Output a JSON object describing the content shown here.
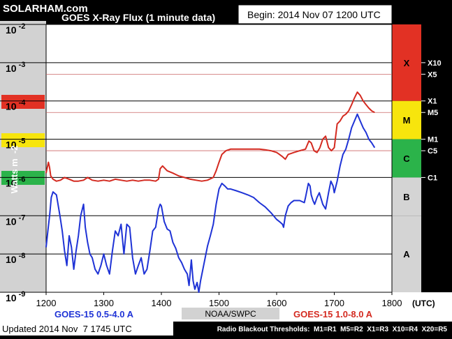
{
  "site": "SOLARHAM.com",
  "chart_title": "GOES X-Ray Flux (1 minute data)",
  "begin_label": "Begin: 2014 Nov 07 1200 UTC",
  "updated_label": "Updated 2014 Nov  7 1745 UTC",
  "source_label": "NOAA/SWPC",
  "radio_blackout": "Radio Blackout Thresholds:  M1=R1  M5=R2  X1=R3  X10=R4  X20=R5",
  "colors": {
    "short_series": "#1f33d6",
    "long_series": "#d42a20",
    "band_x": "#e23124",
    "band_m": "#f7e50d",
    "band_c": "#2bb34a",
    "band_ab": "#d4d4d4"
  },
  "chart_data": {
    "type": "line",
    "title": "GOES X-Ray Flux (1 minute data)",
    "xlabel": "(UTC)",
    "ylabel": "Watts m  -2",
    "x_ticks": [
      "1200",
      "1300",
      "1400",
      "1500",
      "1600",
      "1700",
      "1800"
    ],
    "x_tick_values": [
      1200,
      1300,
      1400,
      1500,
      1600,
      1700,
      1800
    ],
    "y_scale": "log",
    "ylim": [
      1e-09,
      0.01
    ],
    "y_ticks": [
      {
        "base": "10",
        "exp": "-2",
        "value": 0.01
      },
      {
        "base": "10",
        "exp": "-3",
        "value": 0.001
      },
      {
        "base": "10",
        "exp": "-4",
        "value": 0.0001
      },
      {
        "base": "10",
        "exp": "-5",
        "value": 1e-05
      },
      {
        "base": "10",
        "exp": "-6",
        "value": 1e-06
      },
      {
        "base": "10",
        "exp": "-7",
        "value": 1e-07
      },
      {
        "base": "10",
        "exp": "-8",
        "value": 1e-08
      },
      {
        "base": "10",
        "exp": "-9",
        "value": 1e-09
      }
    ],
    "threshold_labels": [
      {
        "label": "X10",
        "value": 0.001
      },
      {
        "label": "X5",
        "value": 0.0005
      },
      {
        "label": "X1",
        "value": 0.0001
      },
      {
        "label": "M5",
        "value": 5e-05
      },
      {
        "label": "M1",
        "value": 1e-05
      },
      {
        "label": "C5",
        "value": 5e-06
      },
      {
        "label": "C1",
        "value": 1e-06
      }
    ],
    "class_bands": [
      {
        "label": "X",
        "from": 0.0001,
        "to": 0.01
      },
      {
        "label": "M",
        "from": 1e-05,
        "to": 0.0001
      },
      {
        "label": "C",
        "from": 1e-06,
        "to": 1e-05
      },
      {
        "label": "B",
        "from": 1e-07,
        "to": 1e-06
      },
      {
        "label": "A",
        "from": 1e-09,
        "to": 1e-07
      }
    ],
    "series": [
      {
        "name": "GOES-15 1.0-8.0 A",
        "x": [
          1200,
          1204,
          1206,
          1208,
          1212,
          1218,
          1225,
          1232,
          1240,
          1248,
          1256,
          1265,
          1272,
          1280,
          1290,
          1300,
          1310,
          1320,
          1330,
          1340,
          1350,
          1360,
          1370,
          1380,
          1390,
          1395,
          1398,
          1402,
          1410,
          1420,
          1430,
          1440,
          1450,
          1460,
          1470,
          1480,
          1490,
          1495,
          1500,
          1505,
          1512,
          1520,
          1530,
          1540,
          1550,
          1560,
          1570,
          1580,
          1590,
          1600,
          1605,
          1610,
          1615,
          1620,
          1630,
          1640,
          1650,
          1656,
          1660,
          1665,
          1670,
          1675,
          1680,
          1685,
          1690,
          1695,
          1700,
          1705,
          1710,
          1715,
          1720,
          1725,
          1730,
          1735,
          1740,
          1745,
          1750,
          1755,
          1760,
          1765,
          1770
        ],
        "y": [
          1.3e-06,
          2.5e-06,
          1.8e-06,
          1.1e-06,
          9e-07,
          8e-07,
          8.5e-07,
          1e-06,
          9e-07,
          8e-07,
          8e-07,
          8.5e-07,
          1e-06,
          8.5e-07,
          8e-07,
          8.5e-07,
          8e-07,
          9e-07,
          8.5e-07,
          8e-07,
          8.5e-07,
          8e-07,
          8.5e-07,
          8.5e-07,
          8e-07,
          9e-07,
          1.7e-06,
          2e-06,
          1.5e-06,
          1.3e-06,
          1.1e-06,
          1e-06,
          9e-07,
          8.5e-07,
          8e-07,
          8.5e-07,
          1e-06,
          1.5e-06,
          2.5e-06,
          4e-06,
          5e-06,
          5.5e-06,
          5.5e-06,
          5.5e-06,
          5.5e-06,
          5.5e-06,
          5.5e-06,
          5.3e-06,
          5e-06,
          4.5e-06,
          4e-06,
          3.5e-06,
          3e-06,
          4e-06,
          4.5e-06,
          5e-06,
          5.5e-06,
          9e-06,
          8e-06,
          5e-06,
          4.5e-06,
          6e-06,
          1e-05,
          1.2e-05,
          6e-06,
          5e-06,
          6e-06,
          2.5e-05,
          3e-05,
          4e-05,
          4.5e-05,
          5.5e-05,
          8e-05,
          0.00012,
          0.00017,
          0.00014,
          0.0001,
          8e-05,
          6.5e-05,
          5.5e-05,
          5e-05
        ]
      },
      {
        "name": "GOES-15 0.5-4.0 A",
        "x": [
          1200,
          1203,
          1206,
          1209,
          1212,
          1218,
          1224,
          1228,
          1232,
          1236,
          1240,
          1244,
          1248,
          1252,
          1256,
          1260,
          1265,
          1268,
          1272,
          1276,
          1280,
          1285,
          1290,
          1295,
          1300,
          1305,
          1310,
          1315,
          1320,
          1325,
          1330,
          1335,
          1340,
          1345,
          1350,
          1355,
          1360,
          1365,
          1370,
          1375,
          1380,
          1385,
          1390,
          1395,
          1398,
          1400,
          1405,
          1410,
          1415,
          1420,
          1425,
          1430,
          1435,
          1440,
          1445,
          1448,
          1452,
          1455,
          1458,
          1462,
          1465,
          1468,
          1472,
          1476,
          1480,
          1485,
          1490,
          1495,
          1500,
          1505,
          1510,
          1515,
          1520,
          1530,
          1540,
          1550,
          1560,
          1570,
          1580,
          1590,
          1600,
          1605,
          1610,
          1612,
          1615,
          1620,
          1625,
          1630,
          1640,
          1648,
          1650,
          1655,
          1658,
          1660,
          1663,
          1666,
          1670,
          1674,
          1680,
          1685,
          1690,
          1694,
          1698,
          1700,
          1705,
          1710,
          1715,
          1720,
          1725,
          1730,
          1735,
          1740,
          1745,
          1750,
          1755,
          1760,
          1765,
          1770
        ],
        "y": [
          1.5e-08,
          4e-08,
          1e-07,
          3e-07,
          4.2e-07,
          3.5e-07,
          1e-07,
          4e-08,
          1.2e-08,
          5e-09,
          3e-08,
          1.5e-08,
          4e-09,
          1.2e-08,
          3e-08,
          1e-07,
          2e-07,
          5e-08,
          2e-08,
          1e-08,
          8e-09,
          4e-09,
          3e-09,
          5e-09,
          1e-08,
          5e-09,
          3e-09,
          1.2e-08,
          4e-08,
          3e-08,
          6e-08,
          1e-08,
          6e-08,
          5e-08,
          8e-09,
          3e-09,
          5e-09,
          8e-09,
          3e-09,
          4e-09,
          1.2e-08,
          4e-08,
          5e-08,
          1.5e-07,
          2e-07,
          1.8e-07,
          7e-08,
          4.5e-08,
          4e-08,
          2e-08,
          1.4e-08,
          8e-09,
          6e-09,
          4e-09,
          3e-09,
          1.5e-09,
          7e-09,
          2e-09,
          1.2e-09,
          1.8e-09,
          1e-09,
          2e-09,
          4e-09,
          8e-09,
          1.6e-08,
          3e-08,
          6e-08,
          2e-07,
          5e-07,
          7e-07,
          6e-07,
          5e-07,
          5e-07,
          4.5e-07,
          4e-07,
          3.5e-07,
          3e-07,
          2.2e-07,
          1.7e-07,
          1.2e-07,
          8e-08,
          7e-08,
          6e-08,
          5e-08,
          1e-07,
          1.8e-07,
          2.2e-07,
          2.5e-07,
          2.5e-07,
          2.2e-07,
          3e-07,
          7e-07,
          6e-07,
          3.5e-07,
          2.5e-07,
          2e-07,
          3e-07,
          4e-07,
          2e-07,
          1.5e-07,
          4e-07,
          8e-07,
          6e-07,
          4e-07,
          8e-07,
          2e-06,
          4e-06,
          5.5e-06,
          1e-05,
          2e-05,
          3e-05,
          4.5e-05,
          3e-05,
          2e-05,
          1.5e-05,
          1e-05,
          8e-06,
          6e-06
        ]
      }
    ],
    "xlim": [
      1200,
      1800
    ]
  }
}
